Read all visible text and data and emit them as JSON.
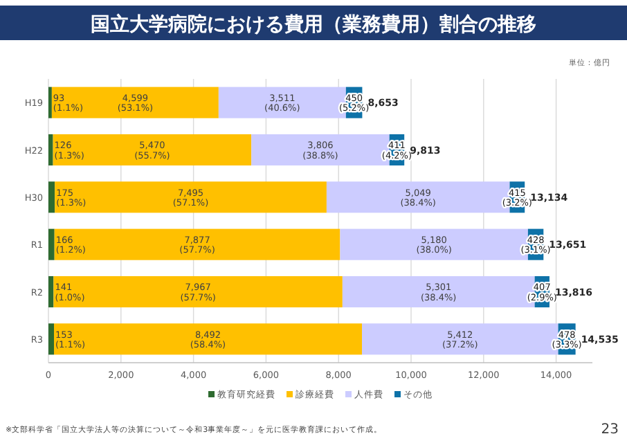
{
  "chart_data": {
    "type": "bar",
    "orientation": "horizontal",
    "stacked": true,
    "title": "国立大学病院における費用（業務費用）割合の推移",
    "categories": [
      "H19",
      "H22",
      "H30",
      "R1",
      "R2",
      "R3"
    ],
    "series": [
      {
        "name": "教育研究経費",
        "color": "#2e6b30",
        "values": [
          93,
          126,
          175,
          166,
          141,
          153
        ],
        "value_labels": [
          "93\n(1.1%)",
          "126\n(1.3%)",
          "175\n(1.3%)",
          "166\n(1.2%)",
          "141\n(1.0%)",
          "153\n(1.1%)"
        ]
      },
      {
        "name": "診療経費",
        "color": "#ffc000",
        "values": [
          4599,
          5470,
          7495,
          7877,
          7967,
          8492
        ],
        "value_labels": [
          "4,599\n(53.1%)",
          "5,470\n(55.7%)",
          "7,495\n(57.1%)",
          "7,877\n(57.7%)",
          "7,967\n(57.7%)",
          "8,492\n(58.4%)"
        ]
      },
      {
        "name": "人件費",
        "color": "#ccccff",
        "values": [
          3511,
          3806,
          5049,
          5180,
          5301,
          5412
        ],
        "value_labels": [
          "3,511\n(40.6%)",
          "3,806\n(38.8%)",
          "5,049\n(38.4%)",
          "5,180\n(38.0%)",
          "5,301\n(38.4%)",
          "5,412\n(37.2%)"
        ]
      },
      {
        "name": "その他",
        "color": "#0e72a8",
        "values": [
          450,
          411,
          415,
          428,
          407,
          478
        ],
        "value_labels": [
          "450\n(5.2%)",
          "411\n(4.2%)",
          "415\n(3.2%)",
          "428\n(3.1%)",
          "407\n(2.9%)",
          "478\n(3.3%)"
        ]
      }
    ],
    "totals": [
      "8,653",
      "9,813",
      "13,134",
      "13,651",
      "13,816",
      "14,535"
    ],
    "xlim": [
      0,
      15000
    ],
    "xticks": [
      {
        "value": 0,
        "label": "0"
      },
      {
        "value": 2000,
        "label": "2,000"
      },
      {
        "value": 4000,
        "label": "4,000"
      },
      {
        "value": 6000,
        "label": "6,000"
      },
      {
        "value": 8000,
        "label": "8,000"
      },
      {
        "value": 10000,
        "label": "10,000"
      },
      {
        "value": 12000,
        "label": "12,000"
      },
      {
        "value": 14000,
        "label": "14,000"
      }
    ],
    "grid": "x",
    "legend": "bottom",
    "annotations": [
      "単位：億円",
      "※文部科学省「国立大学法人等の決算について～令和3事業年度～」を元に医学教育課において作成。",
      "23"
    ]
  }
}
